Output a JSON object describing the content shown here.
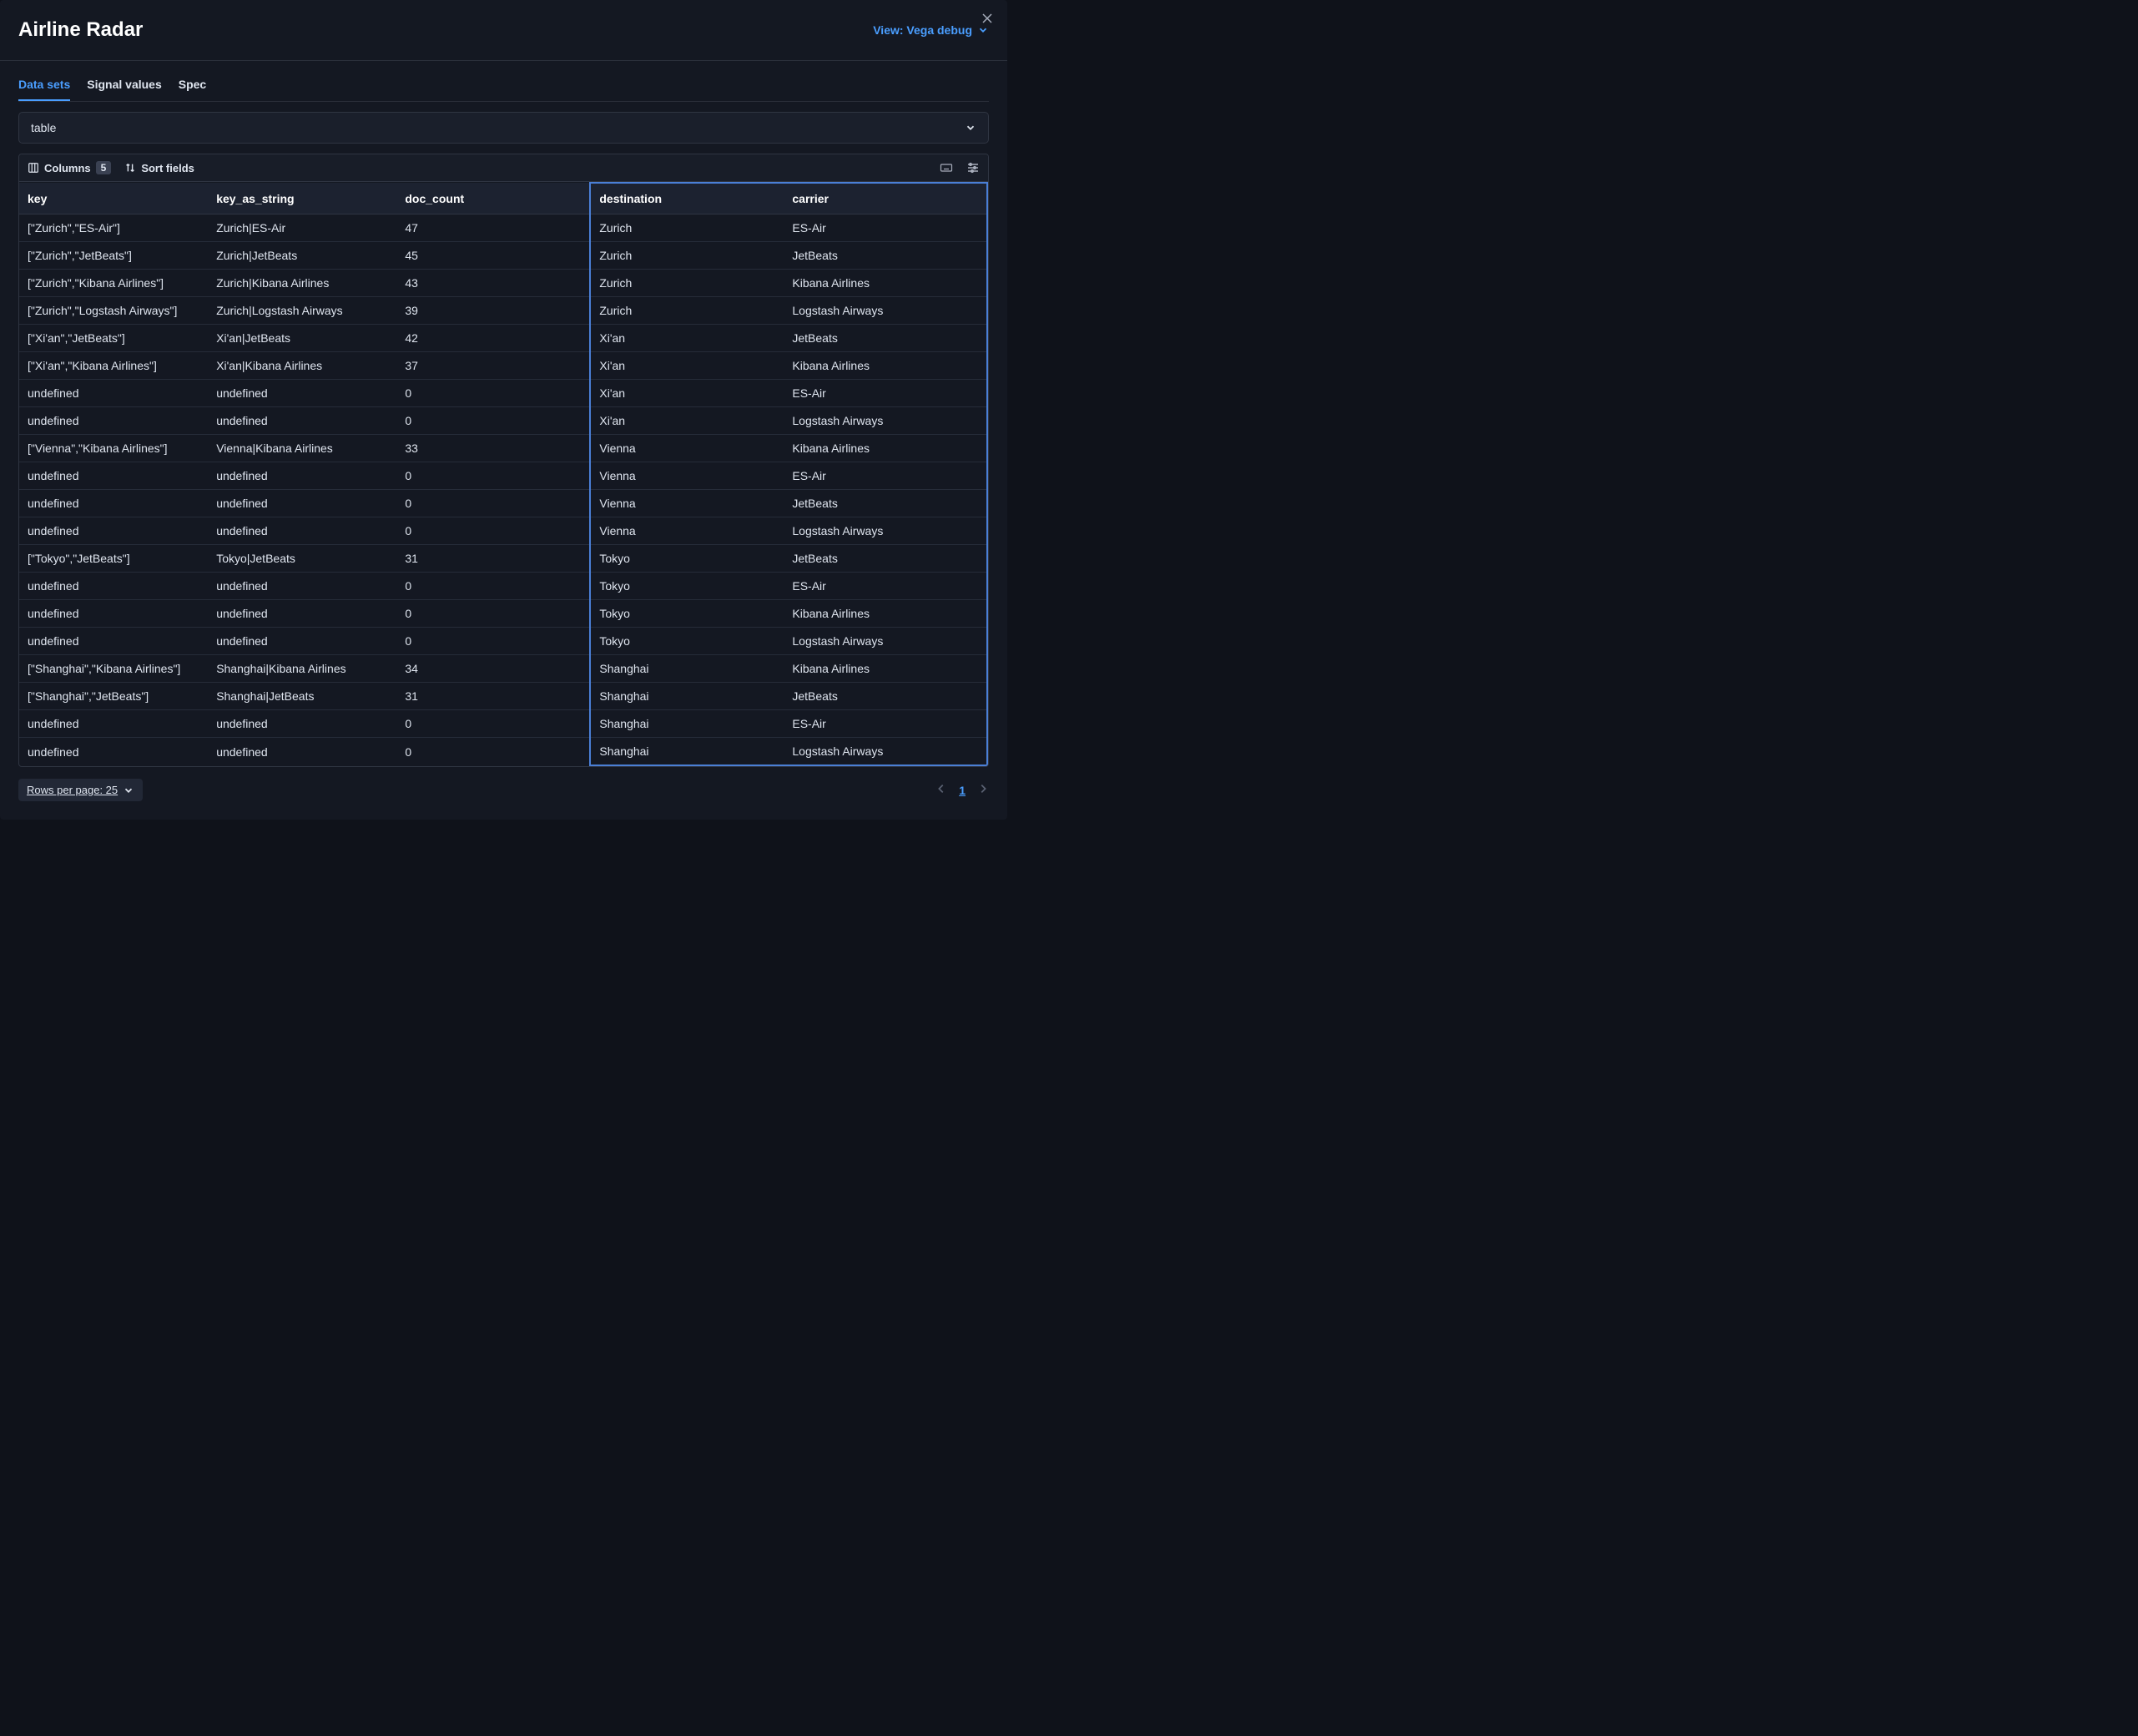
{
  "colors": {
    "background": "#141822",
    "page_bg": "#0f121a",
    "text": "#dfe5ef",
    "text_bright": "#ffffff",
    "accent": "#4a9eff",
    "border": "#2f3542",
    "row_border": "#262c39",
    "header_bg": "#1c2230",
    "toolbar_bg": "#181d28",
    "selection_border": "#4a7fd6",
    "muted": "#a7adbb",
    "badge_bg": "#3a4152"
  },
  "header": {
    "title": "Airline Radar",
    "view_label": "View: Vega debug"
  },
  "tabs": [
    {
      "id": "data-sets",
      "label": "Data sets",
      "active": true
    },
    {
      "id": "signal-values",
      "label": "Signal values",
      "active": false
    },
    {
      "id": "spec",
      "label": "Spec",
      "active": false
    }
  ],
  "dataset_select": {
    "value": "table"
  },
  "toolbar": {
    "columns_label": "Columns",
    "columns_count": "5",
    "sort_label": "Sort fields"
  },
  "table": {
    "columns": [
      "key",
      "key_as_string",
      "doc_count",
      "destination",
      "carrier"
    ],
    "column_widths_pct": [
      19.5,
      19.5,
      20,
      20,
      21
    ],
    "selected_col_start_index": 3,
    "selected_col_end_index": 4,
    "rows": [
      {
        "key": "[\"Zurich\",\"ES-Air\"]",
        "key_as_string": "Zurich|ES-Air",
        "doc_count": "47",
        "destination": "Zurich",
        "carrier": "ES-Air"
      },
      {
        "key": "[\"Zurich\",\"JetBeats\"]",
        "key_as_string": "Zurich|JetBeats",
        "doc_count": "45",
        "destination": "Zurich",
        "carrier": "JetBeats"
      },
      {
        "key": "[\"Zurich\",\"Kibana Airlines\"]",
        "key_as_string": "Zurich|Kibana Airlines",
        "doc_count": "43",
        "destination": "Zurich",
        "carrier": "Kibana Airlines"
      },
      {
        "key": "[\"Zurich\",\"Logstash Airways\"]",
        "key_as_string": "Zurich|Logstash Airways",
        "doc_count": "39",
        "destination": "Zurich",
        "carrier": "Logstash Airways"
      },
      {
        "key": "[\"Xi'an\",\"JetBeats\"]",
        "key_as_string": "Xi'an|JetBeats",
        "doc_count": "42",
        "destination": "Xi'an",
        "carrier": "JetBeats"
      },
      {
        "key": "[\"Xi'an\",\"Kibana Airlines\"]",
        "key_as_string": "Xi'an|Kibana Airlines",
        "doc_count": "37",
        "destination": "Xi'an",
        "carrier": "Kibana Airlines"
      },
      {
        "key": "undefined",
        "key_as_string": "undefined",
        "doc_count": "0",
        "destination": "Xi'an",
        "carrier": "ES-Air"
      },
      {
        "key": "undefined",
        "key_as_string": "undefined",
        "doc_count": "0",
        "destination": "Xi'an",
        "carrier": "Logstash Airways"
      },
      {
        "key": "[\"Vienna\",\"Kibana Airlines\"]",
        "key_as_string": "Vienna|Kibana Airlines",
        "doc_count": "33",
        "destination": "Vienna",
        "carrier": "Kibana Airlines"
      },
      {
        "key": "undefined",
        "key_as_string": "undefined",
        "doc_count": "0",
        "destination": "Vienna",
        "carrier": "ES-Air"
      },
      {
        "key": "undefined",
        "key_as_string": "undefined",
        "doc_count": "0",
        "destination": "Vienna",
        "carrier": "JetBeats"
      },
      {
        "key": "undefined",
        "key_as_string": "undefined",
        "doc_count": "0",
        "destination": "Vienna",
        "carrier": "Logstash Airways"
      },
      {
        "key": "[\"Tokyo\",\"JetBeats\"]",
        "key_as_string": "Tokyo|JetBeats",
        "doc_count": "31",
        "destination": "Tokyo",
        "carrier": "JetBeats"
      },
      {
        "key": "undefined",
        "key_as_string": "undefined",
        "doc_count": "0",
        "destination": "Tokyo",
        "carrier": "ES-Air"
      },
      {
        "key": "undefined",
        "key_as_string": "undefined",
        "doc_count": "0",
        "destination": "Tokyo",
        "carrier": "Kibana Airlines"
      },
      {
        "key": "undefined",
        "key_as_string": "undefined",
        "doc_count": "0",
        "destination": "Tokyo",
        "carrier": "Logstash Airways"
      },
      {
        "key": "[\"Shanghai\",\"Kibana Airlines\"]",
        "key_as_string": "Shanghai|Kibana Airlines",
        "doc_count": "34",
        "destination": "Shanghai",
        "carrier": "Kibana Airlines"
      },
      {
        "key": "[\"Shanghai\",\"JetBeats\"]",
        "key_as_string": "Shanghai|JetBeats",
        "doc_count": "31",
        "destination": "Shanghai",
        "carrier": "JetBeats"
      },
      {
        "key": "undefined",
        "key_as_string": "undefined",
        "doc_count": "0",
        "destination": "Shanghai",
        "carrier": "ES-Air"
      },
      {
        "key": "undefined",
        "key_as_string": "undefined",
        "doc_count": "0",
        "destination": "Shanghai",
        "carrier": "Logstash Airways"
      }
    ]
  },
  "footer": {
    "rows_per_page_label": "Rows per page: 25",
    "current_page": "1"
  }
}
